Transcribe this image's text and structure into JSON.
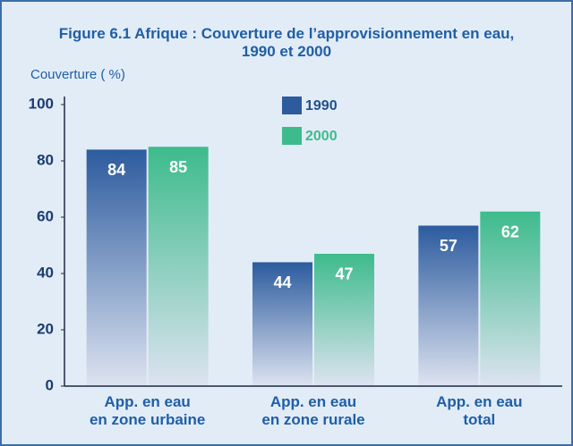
{
  "chart_data": {
    "type": "bar",
    "title": "Figure 6.1   Afrique : Couverture de l’approvisionnement en eau,\n1990 et 2000",
    "y_label": "Couverture ( %)",
    "categories": [
      "App. en eau\nen zone urbaine",
      "App. en eau\nen zone rurale",
      "App. en eau\ntotal"
    ],
    "series": [
      {
        "name": "1990",
        "color": "#2c5b9e",
        "values": [
          84,
          44,
          57
        ]
      },
      {
        "name": "2000",
        "color": "#3dbb8c",
        "values": [
          85,
          47,
          62
        ]
      }
    ],
    "ylim": [
      0,
      100
    ],
    "yticks": [
      0,
      20,
      40,
      60,
      80,
      100
    ],
    "grid": false,
    "legend": "top"
  }
}
